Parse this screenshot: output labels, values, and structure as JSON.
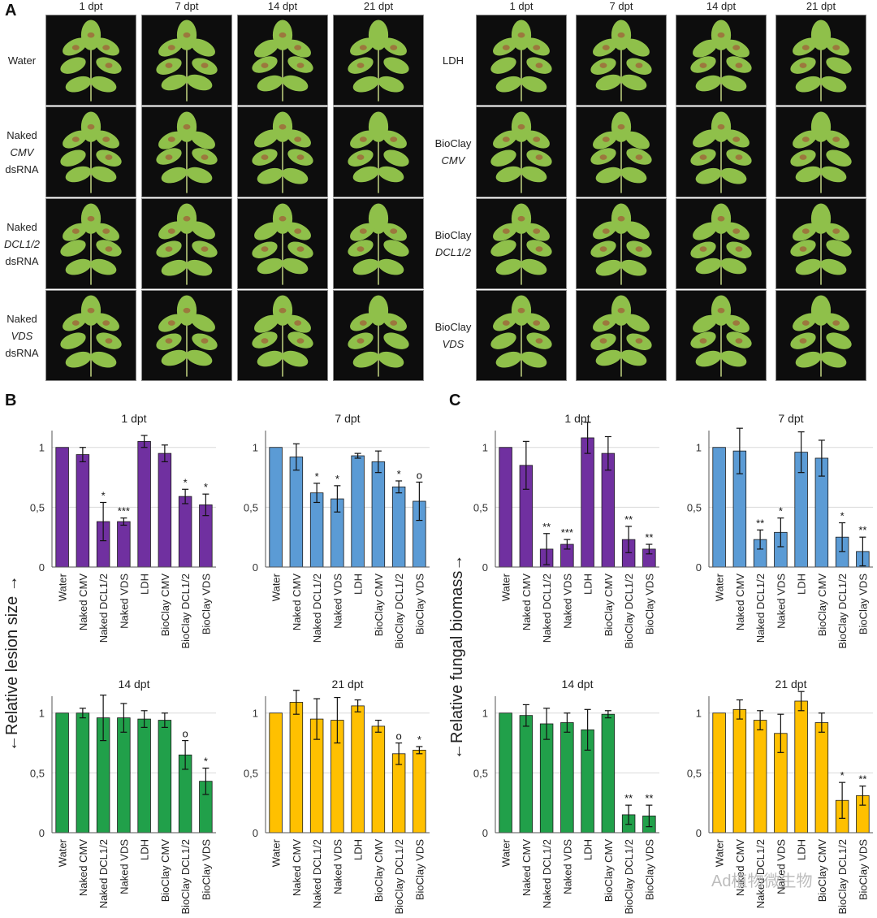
{
  "panels": {
    "a": "A",
    "b": "B",
    "c": "C"
  },
  "photo_columns": [
    "1 dpt",
    "7 dpt",
    "14 dpt",
    "21 dpt"
  ],
  "photo_rows_left": [
    {
      "lines": [
        "Water"
      ],
      "italic": [
        false
      ]
    },
    {
      "lines": [
        "Naked",
        "CMV",
        "dsRNA"
      ],
      "italic": [
        false,
        true,
        false
      ]
    },
    {
      "lines": [
        "Naked",
        "DCL1/2",
        "dsRNA"
      ],
      "italic": [
        false,
        true,
        false
      ]
    },
    {
      "lines": [
        "Naked",
        "VDS",
        "dsRNA"
      ],
      "italic": [
        false,
        true,
        false
      ]
    }
  ],
  "photo_rows_right": [
    {
      "lines": [
        "LDH"
      ],
      "italic": [
        false
      ]
    },
    {
      "lines": [
        "BioClay",
        "CMV"
      ],
      "italic": [
        false,
        true
      ]
    },
    {
      "lines": [
        "BioClay",
        "DCL1/2"
      ],
      "italic": [
        false,
        true
      ]
    },
    {
      "lines": [
        "BioClay",
        "VDS"
      ],
      "italic": [
        false,
        true
      ]
    }
  ],
  "y_axis_labels": {
    "lesion": "←Relative lesion size →",
    "fungal": "←Relative fungal biomass→"
  },
  "watermark": "Ad植物微生物",
  "colors": {
    "purple": "#7030a0",
    "blue": "#5b9bd5",
    "green": "#21a04a",
    "yellow": "#ffc000",
    "leaf": "#8fc04a",
    "lesion": "#a0603a"
  },
  "chart_data": [
    {
      "type": "bar",
      "panel": "B",
      "title": "1 dpt",
      "color": "purple",
      "ylim": [
        0,
        1.1
      ],
      "yticks": [
        "0",
        "0,5",
        "1"
      ],
      "categories": [
        "Water",
        "Naked CMV",
        "Naked DCL1/2",
        "Naked VDS",
        "LDH",
        "BioClay CMV",
        "BioClay DCL1/2",
        "BioClay VDS"
      ],
      "values": [
        1.0,
        0.94,
        0.38,
        0.38,
        1.05,
        0.95,
        0.59,
        0.52
      ],
      "errors": [
        0.0,
        0.06,
        0.16,
        0.03,
        0.05,
        0.07,
        0.06,
        0.09
      ],
      "significance": [
        "",
        "",
        "*",
        "***",
        "",
        "",
        "*",
        "*"
      ]
    },
    {
      "type": "bar",
      "panel": "B",
      "title": "7 dpt",
      "color": "blue",
      "ylim": [
        0,
        1.1
      ],
      "yticks": [
        "0",
        "0,5",
        "1"
      ],
      "categories": [
        "Water",
        "Naked CMV",
        "Naked DCL1/2",
        "Naked VDS",
        "LDH",
        "BioClay CMV",
        "BioClay DCL1/2",
        "BioClay VDS"
      ],
      "values": [
        1.0,
        0.92,
        0.62,
        0.57,
        0.93,
        0.88,
        0.67,
        0.55
      ],
      "errors": [
        0.0,
        0.11,
        0.08,
        0.11,
        0.02,
        0.09,
        0.05,
        0.16
      ],
      "significance": [
        "",
        "",
        "*",
        "*",
        "",
        "",
        "*",
        "o"
      ]
    },
    {
      "type": "bar",
      "panel": "C",
      "title": "1 dpt",
      "color": "purple",
      "ylim": [
        0,
        1.1
      ],
      "yticks": [
        "0",
        "0,5",
        "1"
      ],
      "categories": [
        "Water",
        "Naked CMV",
        "Naked DCL1/2",
        "Naked VDS",
        "LDH",
        "BioClay CMV",
        "BioClay DCL1/2",
        "BioClay VDS"
      ],
      "values": [
        1.0,
        0.85,
        0.15,
        0.19,
        1.08,
        0.95,
        0.23,
        0.15
      ],
      "errors": [
        0.0,
        0.2,
        0.13,
        0.04,
        0.13,
        0.14,
        0.11,
        0.04
      ],
      "significance": [
        "",
        "",
        "**",
        "***",
        "",
        "",
        "**",
        "**"
      ]
    },
    {
      "type": "bar",
      "panel": "C",
      "title": "7 dpt",
      "color": "blue",
      "ylim": [
        0,
        1.1
      ],
      "yticks": [
        "0",
        "0,5",
        "1"
      ],
      "categories": [
        "Water",
        "Naked CMV",
        "Naked DCL1/2",
        "Naked VDS",
        "LDH",
        "BioClay CMV",
        "BioClay DCL1/2",
        "BioClay VDS"
      ],
      "values": [
        1.0,
        0.97,
        0.23,
        0.29,
        0.96,
        0.91,
        0.25,
        0.13
      ],
      "errors": [
        0.0,
        0.19,
        0.08,
        0.12,
        0.17,
        0.15,
        0.12,
        0.12
      ],
      "significance": [
        "",
        "",
        "**",
        "*",
        "",
        "",
        "*",
        "**"
      ]
    },
    {
      "type": "bar",
      "panel": "B",
      "title": "14 dpt",
      "color": "green",
      "ylim": [
        0,
        1.1
      ],
      "yticks": [
        "0",
        "0,5",
        "1"
      ],
      "categories": [
        "Water",
        "Naked CMV",
        "Naked DCL1/2",
        "Naked VDS",
        "LDH",
        "BioClay CMV",
        "BioClay DCL1/2",
        "BioClay VDS"
      ],
      "values": [
        1.0,
        1.0,
        0.96,
        0.96,
        0.95,
        0.94,
        0.65,
        0.43
      ],
      "errors": [
        0.0,
        0.04,
        0.19,
        0.12,
        0.07,
        0.06,
        0.12,
        0.11
      ],
      "significance": [
        "",
        "",
        "",
        "",
        "",
        "",
        "o",
        "*"
      ]
    },
    {
      "type": "bar",
      "panel": "B",
      "title": "21 dpt",
      "color": "yellow",
      "ylim": [
        0,
        1.1
      ],
      "yticks": [
        "0",
        "0,5",
        "1"
      ],
      "categories": [
        "Water",
        "Naked CMV",
        "Naked DCL1/2",
        "Naked VDS",
        "LDH",
        "BioClay CMV",
        "BioClay DCL1/2",
        "BioClay VDS"
      ],
      "values": [
        1.0,
        1.09,
        0.95,
        0.94,
        1.06,
        0.89,
        0.66,
        0.69
      ],
      "errors": [
        0.0,
        0.1,
        0.17,
        0.19,
        0.05,
        0.05,
        0.09,
        0.03
      ],
      "significance": [
        "",
        "",
        "",
        "",
        "",
        "",
        "o",
        "*"
      ]
    },
    {
      "type": "bar",
      "panel": "C",
      "title": "14 dpt",
      "color": "green",
      "ylim": [
        0,
        1.1
      ],
      "yticks": [
        "0",
        "0,5",
        "1"
      ],
      "categories": [
        "Water",
        "Naked CMV",
        "Naked DCL1/2",
        "Naked VDS",
        "LDH",
        "BioClay CMV",
        "BioClay DCL1/2",
        "BioClay VDS"
      ],
      "values": [
        1.0,
        0.98,
        0.91,
        0.92,
        0.86,
        0.99,
        0.15,
        0.14
      ],
      "errors": [
        0.0,
        0.09,
        0.13,
        0.08,
        0.17,
        0.03,
        0.08,
        0.09
      ],
      "significance": [
        "",
        "",
        "",
        "",
        "",
        "",
        "**",
        "**"
      ]
    },
    {
      "type": "bar",
      "panel": "C",
      "title": "21 dpt",
      "color": "yellow",
      "ylim": [
        0,
        1.1
      ],
      "yticks": [
        "0",
        "0,5",
        "1"
      ],
      "categories": [
        "Water",
        "Naked CMV",
        "Naked DCL1/2",
        "Naked VDS",
        "LDH",
        "BioClay CMV",
        "BioClay DCL1/2",
        "BioClay VDS"
      ],
      "values": [
        1.0,
        1.03,
        0.94,
        0.83,
        1.1,
        0.92,
        0.27,
        0.31
      ],
      "errors": [
        0.0,
        0.08,
        0.08,
        0.16,
        0.08,
        0.08,
        0.15,
        0.08
      ],
      "significance": [
        "",
        "",
        "",
        "",
        "",
        "",
        "*",
        "**"
      ]
    }
  ]
}
